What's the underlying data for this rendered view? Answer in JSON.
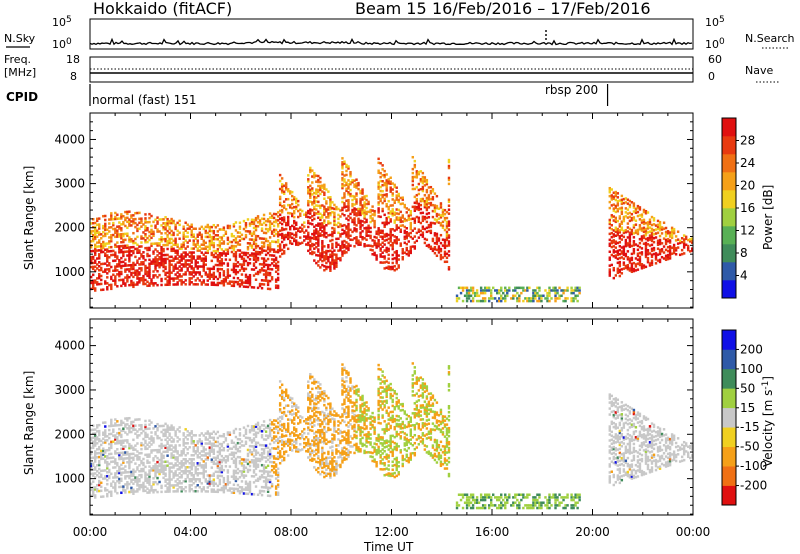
{
  "header": {
    "radar": "Hokkaido (fitACF)",
    "beam": "Beam 15",
    "date_range": "16/Feb/2016 – 17/Feb/2016"
  },
  "noise_panel": {
    "left_label": "N.Sky",
    "right_label": "N.Search",
    "tick_top": "10^5",
    "tick_bottom": "10^0"
  },
  "freq_panel": {
    "left_label_1": "Freq.",
    "left_label_2": "[MHz]",
    "left_ticks": [
      "18",
      "8"
    ],
    "right_label": "Nave",
    "right_ticks": [
      "60",
      "0"
    ]
  },
  "cpid": {
    "label": "CPID",
    "mode_1": "normal (fast) 151",
    "mode_2": "rbsp 200",
    "switch_hour": 20.6
  },
  "chart_data": [
    {
      "type": "heatmap",
      "title": "",
      "xlabel": "",
      "ylabel": "Slant Range [km]",
      "xlim": [
        0,
        24
      ],
      "ylim": [
        180,
        4600
      ],
      "yticks": [
        1000,
        2000,
        3000,
        4000
      ],
      "colorbar": {
        "label": "Power [dB]",
        "ticks": [
          "4",
          "8",
          "12",
          "16",
          "20",
          "24",
          "28"
        ],
        "colors": [
          "#1010e6",
          "#2f5aa8",
          "#3f8c5a",
          "#58b055",
          "#a0d040",
          "#f0d020",
          "#f5a018",
          "#f07014",
          "#e83a10",
          "#e01010"
        ]
      },
      "features": [
        {
          "hours": [
            0.0,
            7.5
          ],
          "range_km": [
            600,
            2300
          ],
          "level": "high"
        },
        {
          "hours": [
            7.2,
            14.2
          ],
          "range_km": [
            1300,
            3700
          ],
          "level": "high"
        },
        {
          "hours": [
            14.5,
            19.5
          ],
          "range_km": [
            300,
            700
          ],
          "level": "low"
        },
        {
          "hours": [
            20.6,
            24.0
          ],
          "range_km": [
            800,
            2900
          ],
          "level": "high"
        }
      ]
    },
    {
      "type": "heatmap",
      "title": "",
      "xlabel": "Time UT",
      "ylabel": "Slant Range [km]",
      "xlim": [
        0,
        24
      ],
      "ylim": [
        180,
        4600
      ],
      "yticks": [
        1000,
        2000,
        3000,
        4000
      ],
      "xticks": [
        "00:00",
        "04:00",
        "08:00",
        "12:00",
        "16:00",
        "20:00",
        "00:00"
      ],
      "colorbar": {
        "label": "Velocity [m s^-1]",
        "ticks": [
          "-200",
          "-100",
          "-50",
          "-15",
          "15",
          "50",
          "100",
          "200"
        ],
        "colors": [
          "#e01010",
          "#f07014",
          "#f5a018",
          "#f0d020",
          "#c8c8c8",
          "#a0d040",
          "#3f8c5a",
          "#2f5aa8",
          "#1010e6"
        ]
      },
      "features": [
        {
          "hours": [
            0.0,
            7.5
          ],
          "range_km": [
            600,
            2300
          ],
          "velocity": "near zero"
        },
        {
          "hours": [
            7.2,
            10.5
          ],
          "range_km": [
            1300,
            3300
          ],
          "velocity": "-50"
        },
        {
          "hours": [
            10.5,
            14.2
          ],
          "range_km": [
            1400,
            3700
          ],
          "velocity": "mixed"
        },
        {
          "hours": [
            14.5,
            19.5
          ],
          "range_km": [
            300,
            700
          ],
          "velocity": "+50"
        },
        {
          "hours": [
            20.6,
            24.0
          ],
          "range_km": [
            800,
            2900
          ],
          "velocity": "near zero"
        }
      ]
    }
  ]
}
